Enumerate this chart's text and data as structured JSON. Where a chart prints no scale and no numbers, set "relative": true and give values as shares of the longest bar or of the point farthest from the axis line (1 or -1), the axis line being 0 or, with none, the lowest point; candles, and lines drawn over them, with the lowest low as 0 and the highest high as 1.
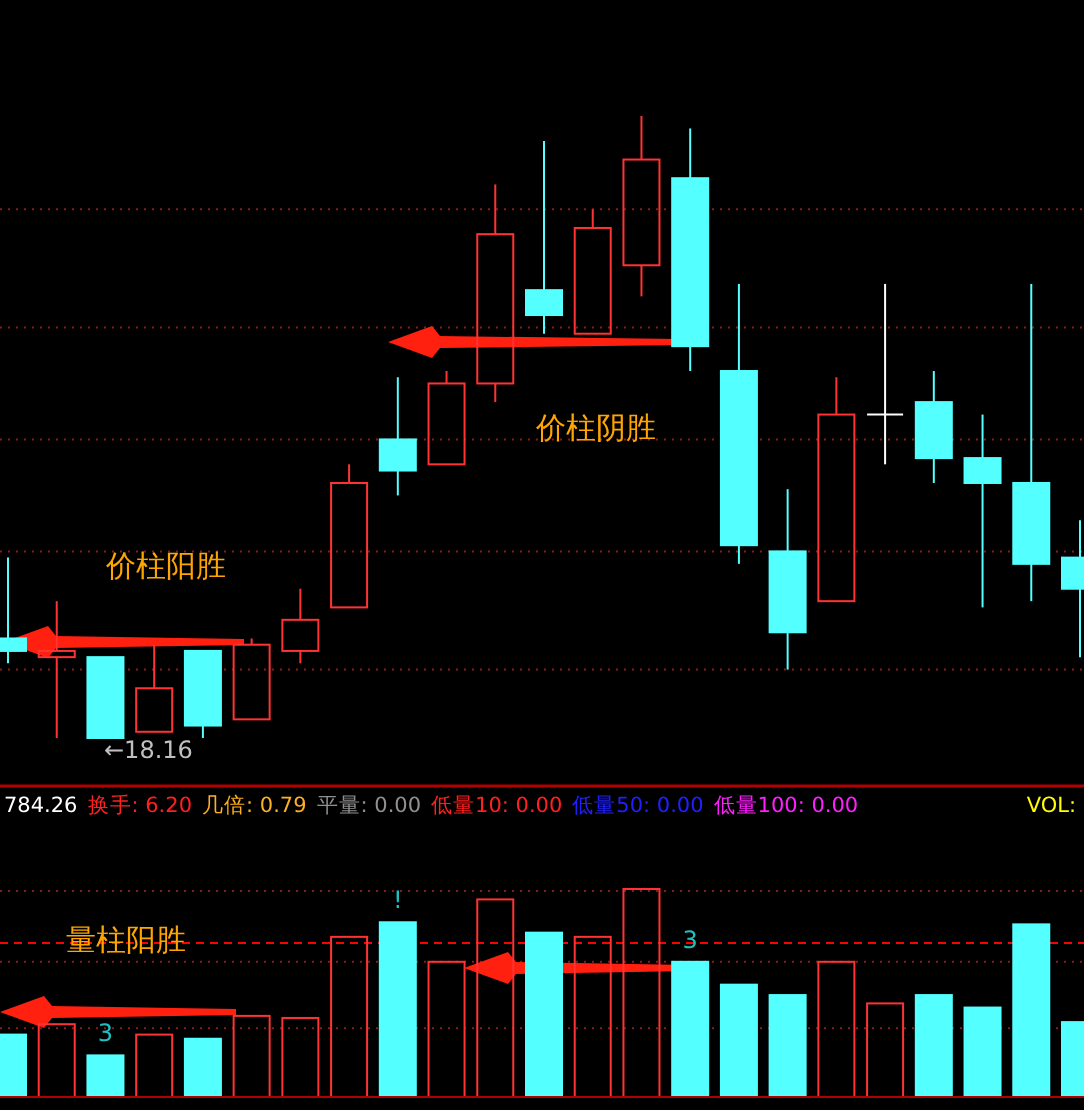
{
  "chart_data": [
    {
      "type": "candlestick",
      "relative": true,
      "ref_lines": [
        {
          "axis": "y",
          "value": 0.85,
          "color": "#8b1a1a",
          "line_style": "dotted"
        },
        {
          "axis": "y",
          "value": 0.66,
          "color": "#8b1a1a",
          "line_style": "dotted"
        },
        {
          "axis": "y",
          "value": 0.48,
          "color": "#8b1a1a",
          "line_style": "dotted"
        },
        {
          "axis": "y",
          "value": 0.3,
          "color": "#8b1a1a",
          "line_style": "dotted"
        },
        {
          "axis": "y",
          "value": 0.11,
          "color": "#8b1a1a",
          "line_style": "dotted"
        }
      ],
      "categories": [
        null,
        null,
        null,
        null,
        null,
        null,
        null,
        null,
        null,
        null,
        null,
        null,
        null,
        null,
        null,
        null,
        null,
        null,
        null,
        null,
        null,
        null,
        null
      ],
      "ohlc": [
        [
          0.16,
          0.29,
          0.12,
          0.14
        ],
        [
          0.13,
          0.22,
          0.0,
          0.14
        ],
        [
          0.13,
          0.13,
          0.0,
          0.0
        ],
        [
          0.01,
          0.15,
          0.01,
          0.08
        ],
        [
          0.14,
          0.14,
          0.0,
          0.02
        ],
        [
          0.03,
          0.16,
          0.03,
          0.15
        ],
        [
          0.14,
          0.24,
          0.12,
          0.19
        ],
        [
          0.21,
          0.44,
          0.21,
          0.41
        ],
        [
          0.48,
          0.58,
          0.39,
          0.43
        ],
        [
          0.44,
          0.59,
          0.44,
          0.57
        ],
        [
          0.57,
          0.89,
          0.54,
          0.81
        ],
        [
          0.72,
          0.96,
          0.65,
          0.68
        ],
        [
          0.65,
          0.85,
          0.65,
          0.82
        ],
        [
          0.76,
          1.0,
          0.71,
          0.93
        ],
        [
          0.9,
          0.98,
          0.59,
          0.63
        ],
        [
          0.59,
          0.73,
          0.28,
          0.31
        ],
        [
          0.3,
          0.4,
          0.11,
          0.17
        ],
        [
          0.22,
          0.58,
          0.22,
          0.52
        ],
        [
          0.52,
          0.73,
          0.44,
          0.52
        ],
        [
          0.54,
          0.59,
          0.41,
          0.45
        ],
        [
          0.45,
          0.52,
          0.21,
          0.41
        ],
        [
          0.41,
          0.73,
          0.22,
          0.28
        ],
        [
          0.29,
          0.35,
          0.13,
          0.24
        ]
      ],
      "annotations": [
        "价柱阳胜",
        "价柱阴胜",
        "←18.16"
      ]
    },
    {
      "type": "bar",
      "relative": true,
      "categories": [
        null,
        null,
        null,
        null,
        null,
        null,
        null,
        null,
        null,
        null,
        null,
        null,
        null,
        null,
        null,
        null,
        null,
        null,
        null,
        null,
        null,
        null,
        null
      ],
      "values": [
        0.3,
        0.35,
        0.2,
        0.3,
        0.28,
        0.39,
        0.38,
        0.77,
        0.84,
        0.65,
        0.95,
        0.79,
        0.77,
        1.0,
        0.65,
        0.54,
        0.49,
        0.65,
        0.45,
        0.49,
        0.43,
        0.83,
        0.36
      ],
      "colors": [
        "#54ffff",
        "#ff3333",
        "#54ffff",
        "#ff3333",
        "#54ffff",
        "#ff3333",
        "#ff3333",
        "#ff3333",
        "#54ffff",
        "#ff3333",
        "#ff3333",
        "#54ffff",
        "#ff3333",
        "#ff3333",
        "#54ffff",
        "#54ffff",
        "#54ffff",
        "#ff3333",
        "#ff3333",
        "#54ffff",
        "#54ffff",
        "#54ffff",
        "#54ffff"
      ],
      "ref_lines": [
        {
          "axis": "y",
          "value": 0.74,
          "color": "#ff0000",
          "line_style": "dashed"
        },
        {
          "axis": "y",
          "value": 0.99,
          "color": "#8b1a1a",
          "line_style": "dotted"
        },
        {
          "axis": "y",
          "value": 0.65,
          "color": "#8b1a1a",
          "line_style": "dotted"
        },
        {
          "axis": "y",
          "value": 0.33,
          "color": "#8b1a1a",
          "line_style": "dotted"
        }
      ],
      "annotations": [
        "量柱阳胜",
        "784.26",
        "换手: 6.20",
        "几倍: 0.79",
        "平量: 0.00",
        "低量10: 0.00",
        "低量50: 0.00",
        "低量100: 0.00",
        "VOL:",
        "3",
        "!",
        "3"
      ]
    }
  ]
}
